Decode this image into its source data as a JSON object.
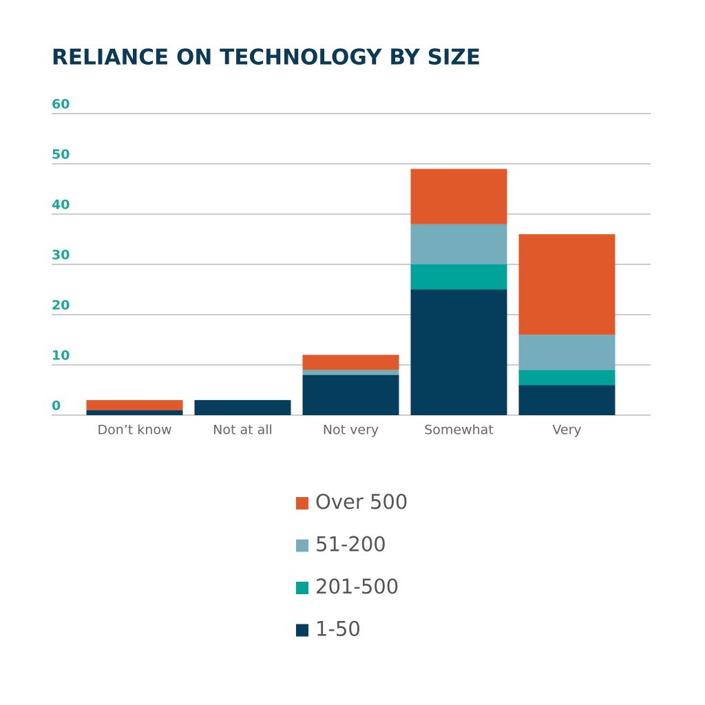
{
  "chart_data": {
    "type": "stacked_bar",
    "title": "RELIANCE ON TECHNOLOGY BY SIZE",
    "categories": [
      "Don’t know",
      "Not at all",
      "Not very",
      "Somewhat",
      "Very"
    ],
    "series": [
      {
        "name": "1-50",
        "color": "#053d5c",
        "values": [
          1,
          3,
          8,
          25,
          6
        ]
      },
      {
        "name": "201-500",
        "color": "#00a39a",
        "values": [
          0,
          0,
          0,
          5,
          3
        ]
      },
      {
        "name": "51-200",
        "color": "#75adbd",
        "values": [
          0,
          0,
          1,
          8,
          7
        ]
      },
      {
        "name": "Over 500",
        "color": "#e0592a",
        "values": [
          2,
          0,
          3,
          11,
          20
        ]
      }
    ],
    "ylim": [
      0,
      60
    ],
    "yticks": [
      0,
      10,
      20,
      30,
      40,
      50,
      60
    ],
    "grid": true
  }
}
